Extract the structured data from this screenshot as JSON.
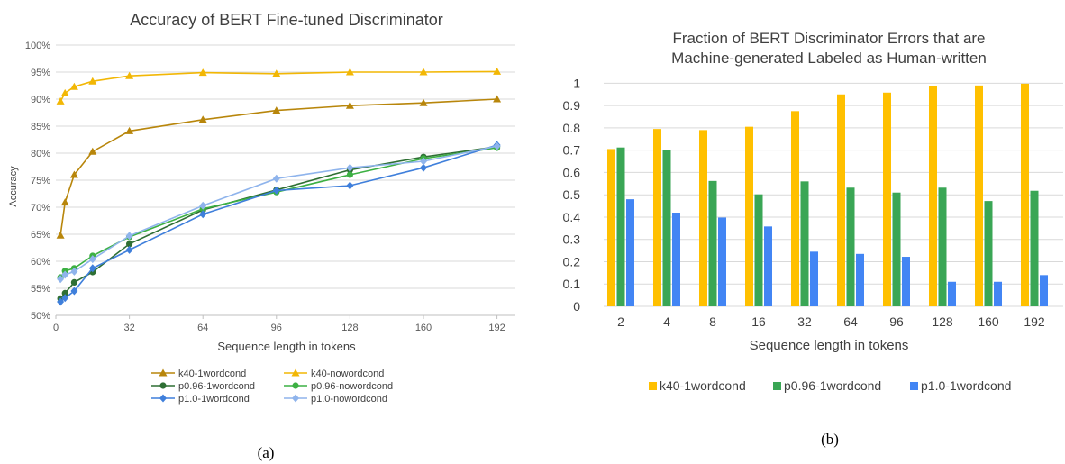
{
  "chart_data": [
    {
      "type": "line",
      "title": "Accuracy of BERT Fine-tuned Discriminator",
      "xlabel": "Sequence length in tokens",
      "ylabel": "Accuracy",
      "xlim": [
        0,
        200
      ],
      "ylim": [
        0.5,
        1.0
      ],
      "x_ticks": [
        0,
        32,
        64,
        96,
        128,
        160,
        192
      ],
      "y_ticks": [
        "50%",
        "55%",
        "60%",
        "65%",
        "70%",
        "75%",
        "80%",
        "85%",
        "90%",
        "95%",
        "100%"
      ],
      "grid": "horizontal",
      "legend_position": "bottom",
      "x": [
        2,
        4,
        8,
        16,
        32,
        64,
        96,
        128,
        160,
        192
      ],
      "series": [
        {
          "name": "k40-1wordcond",
          "color": "#b8860b",
          "marker": "triangle",
          "values": [
            0.648,
            0.709,
            0.76,
            0.803,
            0.841,
            0.862,
            0.879,
            0.888,
            0.893,
            0.9
          ]
        },
        {
          "name": "k40-nowordcond",
          "color": "#f2b705",
          "marker": "triangle",
          "values": [
            0.896,
            0.911,
            0.923,
            0.933,
            0.943,
            0.949,
            0.947,
            0.95,
            0.95,
            0.951
          ]
        },
        {
          "name": "p0.96-1wordcond",
          "color": "#2e6f34",
          "marker": "circle",
          "values": [
            0.531,
            0.541,
            0.561,
            0.58,
            0.632,
            0.695,
            0.732,
            0.769,
            0.793,
            0.812
          ]
        },
        {
          "name": "p0.96-nowordcond",
          "color": "#3cb043",
          "marker": "circle",
          "values": [
            0.57,
            0.582,
            0.587,
            0.61,
            0.645,
            0.697,
            0.728,
            0.76,
            0.79,
            0.81
          ]
        },
        {
          "name": "p1.0-1wordcond",
          "color": "#3f7fdb",
          "marker": "diamond",
          "values": [
            0.525,
            0.532,
            0.545,
            0.587,
            0.621,
            0.687,
            0.731,
            0.74,
            0.773,
            0.815
          ]
        },
        {
          "name": "p1.0-nowordcond",
          "color": "#8fb4ec",
          "marker": "diamond",
          "values": [
            0.567,
            0.575,
            0.581,
            0.604,
            0.647,
            0.703,
            0.753,
            0.773,
            0.785,
            0.813
          ]
        }
      ],
      "panel_label": "(a)"
    },
    {
      "type": "bar",
      "title_lines": [
        "Fraction of BERT Discriminator Errors that are",
        "Machine-generated Labeled as Human-written"
      ],
      "xlabel": "Sequence length in tokens",
      "ylabel": "",
      "ylim": [
        0,
        1.05
      ],
      "y_ticks": [
        "0",
        "0.1",
        "0.2",
        "0.3",
        "0.4",
        "0.5",
        "0.6",
        "0.7",
        "0.8",
        "0.9",
        "1"
      ],
      "grid": "horizontal",
      "legend_position": "bottom",
      "categories": [
        "2",
        "4",
        "8",
        "16",
        "32",
        "64",
        "96",
        "128",
        "160",
        "192"
      ],
      "series": [
        {
          "name": "k40-1wordcond",
          "color": "#ffc000",
          "values": [
            0.705,
            0.795,
            0.79,
            0.805,
            0.875,
            0.95,
            0.958,
            0.988,
            0.99,
            0.998
          ]
        },
        {
          "name": "p0.96-1wordcond",
          "color": "#3aa655",
          "values": [
            0.712,
            0.7,
            0.562,
            0.502,
            0.56,
            0.532,
            0.51,
            0.532,
            0.472,
            0.518
          ]
        },
        {
          "name": "p1.0-1wordcond",
          "color": "#4285f4",
          "values": [
            0.48,
            0.42,
            0.398,
            0.358,
            0.245,
            0.235,
            0.222,
            0.11,
            0.11,
            0.14
          ]
        }
      ],
      "panel_label": "(b)"
    }
  ]
}
